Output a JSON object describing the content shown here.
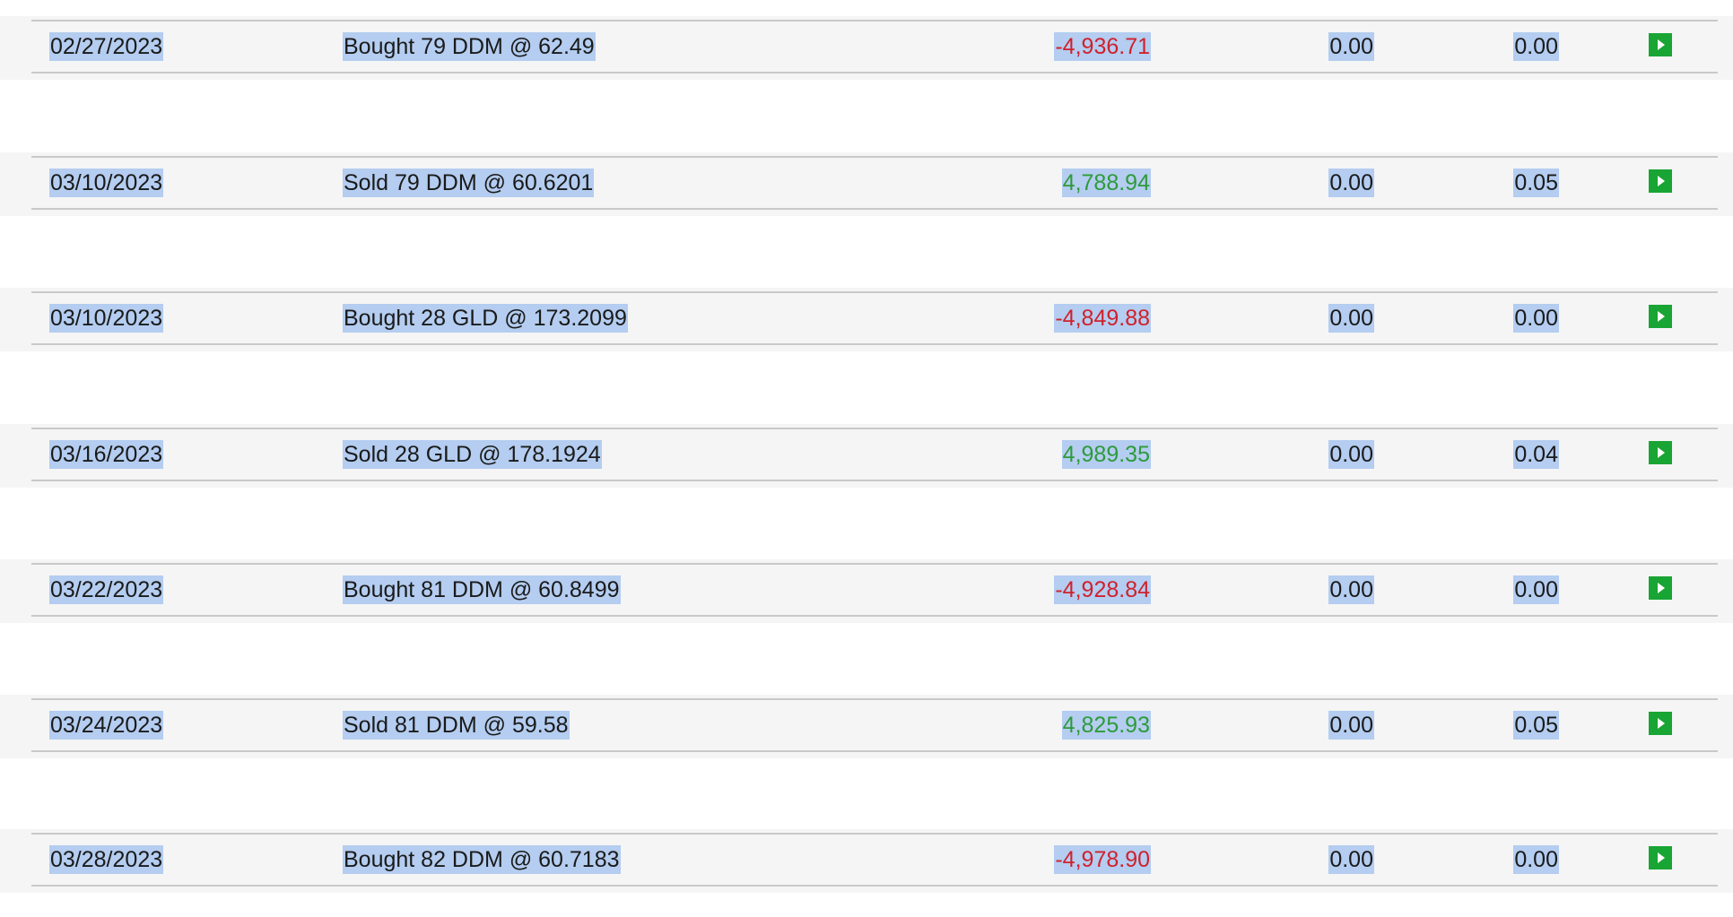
{
  "transactions": [
    {
      "date": "02/27/2023",
      "description": "Bought 79 DDM @ 62.49",
      "amount": "-4,936.71",
      "amount_sign": "neg",
      "col4": "0.00",
      "col5": "0.00",
      "action_icon": "play-icon"
    },
    {
      "date": "03/10/2023",
      "description": "Sold 79 DDM @ 60.6201",
      "amount": "4,788.94",
      "amount_sign": "pos",
      "col4": "0.00",
      "col5": "0.05",
      "action_icon": "play-icon"
    },
    {
      "date": "03/10/2023",
      "description": "Bought 28 GLD @ 173.2099",
      "amount": "-4,849.88",
      "amount_sign": "neg",
      "col4": "0.00",
      "col5": "0.00",
      "action_icon": "play-icon"
    },
    {
      "date": "03/16/2023",
      "description": "Sold 28 GLD @ 178.1924",
      "amount": "4,989.35",
      "amount_sign": "pos",
      "col4": "0.00",
      "col5": "0.04",
      "action_icon": "play-icon"
    },
    {
      "date": "03/22/2023",
      "description": "Bought 81 DDM @ 60.8499",
      "amount": "-4,928.84",
      "amount_sign": "neg",
      "col4": "0.00",
      "col5": "0.00",
      "action_icon": "play-icon"
    },
    {
      "date": "03/24/2023",
      "description": "Sold 81 DDM @ 59.58",
      "amount": "4,825.93",
      "amount_sign": "pos",
      "col4": "0.00",
      "col5": "0.05",
      "action_icon": "play-icon"
    },
    {
      "date": "03/28/2023",
      "description": "Bought 82 DDM @ 60.7183",
      "amount": "-4,978.90",
      "amount_sign": "neg",
      "col4": "0.00",
      "col5": "0.00",
      "action_icon": "play-icon"
    }
  ],
  "colors": {
    "negative": "#d0212c",
    "positive": "#2e9a3a",
    "selection": "#b4cdf0",
    "action_button": "#18a533",
    "row_band": "#f5f5f5"
  }
}
